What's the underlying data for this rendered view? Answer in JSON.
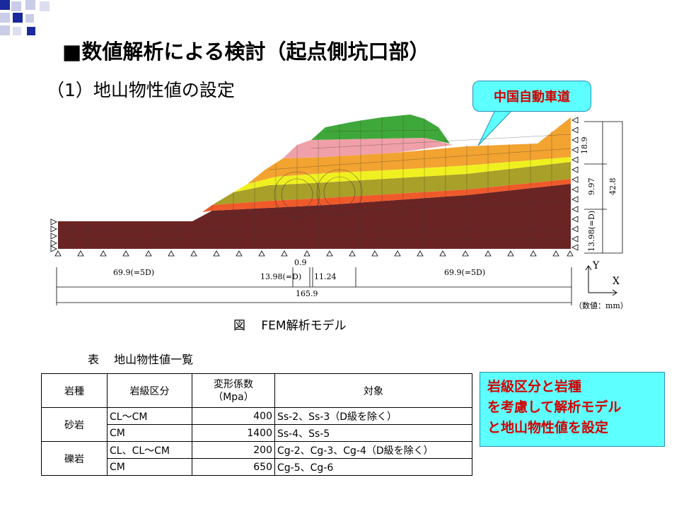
{
  "title": "■数値解析による検討（起点側坑口部）",
  "subtitle": "（1）地山物性値の設定",
  "callout": "中国自動車道",
  "figure": {
    "caption": "図　 FEM解析モデル",
    "dims": {
      "left": "69.9(=5D)",
      "d1": "0.9",
      "d2": "13.98(=D)",
      "d3": "11.24",
      "right": "69.9(=5D)",
      "total": "165.9",
      "v1": "18.9",
      "v2": "9.97",
      "v3": "13.98(=D)",
      "v_total": "42.8"
    },
    "axis_y": "Y",
    "axis_x": "X",
    "units_note": "（数値：mm）"
  },
  "table": {
    "title": "表　 地山物性値一覧",
    "headers": {
      "rock": "岩種",
      "grade": "岩級区分",
      "modulus": "変形係数",
      "modulus_unit": "（Mpa）",
      "target": "対象"
    },
    "groups": [
      {
        "rock": "砂岩",
        "rows": [
          {
            "grade": "CL～CM",
            "modulus": "400",
            "target": "Ss-2、Ss-3（D級を除く）"
          },
          {
            "grade": "CM",
            "modulus": "1400",
            "target": "Ss-4、Ss-5"
          }
        ]
      },
      {
        "rock": "礫岩",
        "rows": [
          {
            "grade": "CL、CL～CM",
            "modulus": "200",
            "target": "Cg-2、Cg-3、Cg-4（D級を除く）"
          },
          {
            "grade": "CM",
            "modulus": "650",
            "target": "Cg-5、Cg-6"
          }
        ]
      }
    ]
  },
  "note": {
    "line1": "岩級区分と岩種",
    "line2": "を考慮して解析モデル",
    "line3": "と地山物性値を設定"
  },
  "colors": {
    "dark_brown": "#6b2424",
    "orange_red": "#f05a2a",
    "olive": "#a8a028",
    "yellow": "#f0f020",
    "orange": "#f2a330",
    "pink": "#f0a0a8",
    "green": "#3fa83a",
    "callout_bg": "#5dffff",
    "callout_text": "#d20000"
  }
}
